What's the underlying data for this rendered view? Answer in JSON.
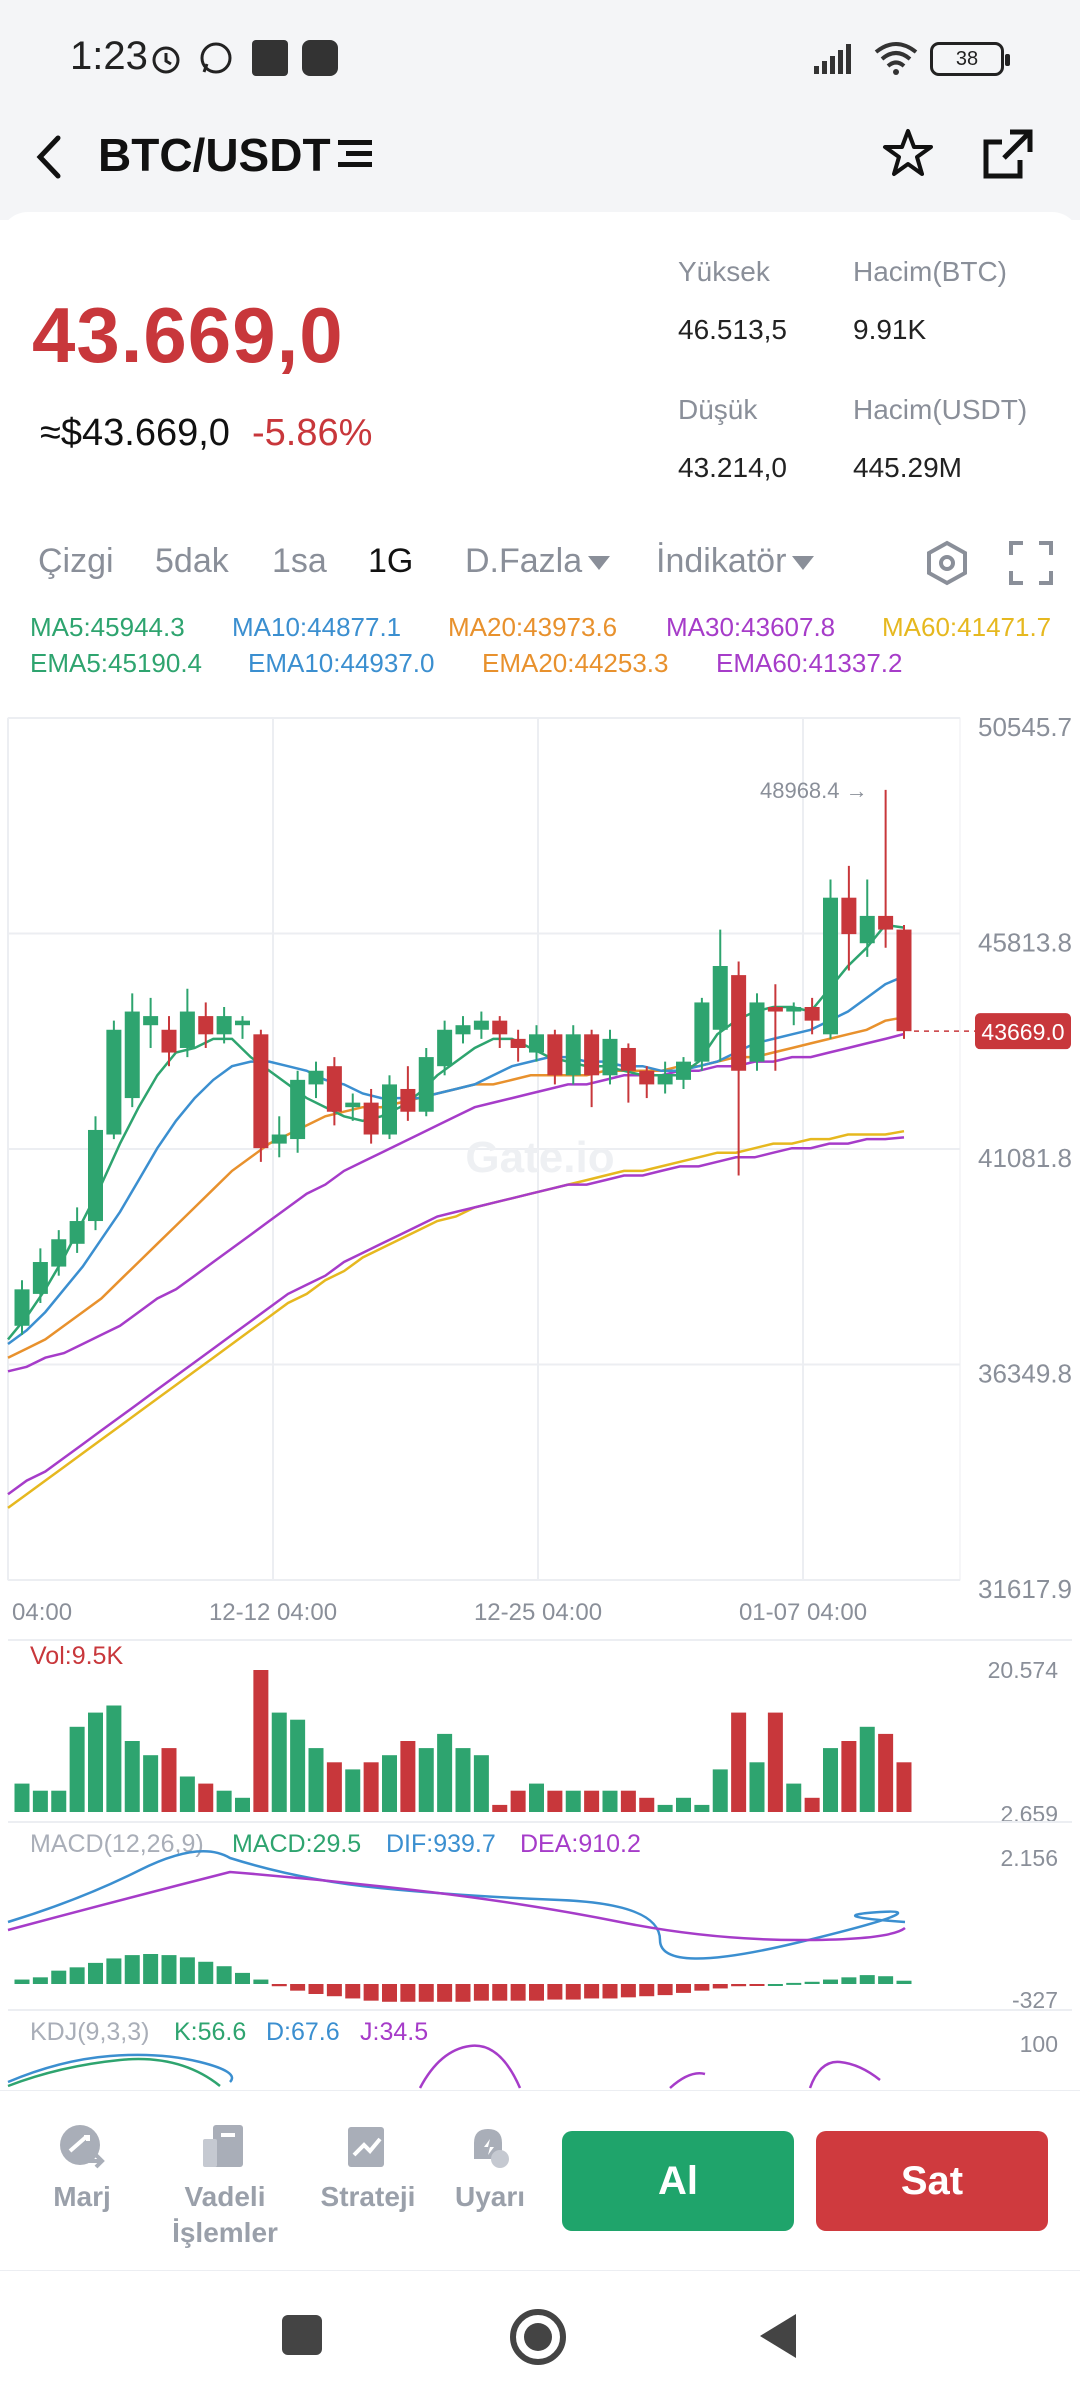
{
  "status": {
    "time": "1:23",
    "battery": "38",
    "icons": [
      "alarm-icon",
      "whatsapp-icon",
      "app-icon",
      "app-icon",
      "signal-icon",
      "wifi-icon",
      "battery-icon"
    ]
  },
  "header": {
    "title": "BTC/USDT",
    "icons": [
      "back-arrow-icon",
      "menu-lines-icon",
      "star-icon",
      "share-icon"
    ]
  },
  "summary": {
    "price": "43.669,0",
    "approx_usd": "≈$43.669,0",
    "change": "-5.86%",
    "high_label": "Yüksek",
    "high_value": "46.513,5",
    "vol_btc_label": "Hacim(BTC)",
    "vol_btc_value": "9.91K",
    "low_label": "Düşük",
    "low_value": "43.214,0",
    "vol_usdt_label": "Hacim(USDT)",
    "vol_usdt_value": "445.29M"
  },
  "tabs": {
    "line": "Çizgi",
    "m5": "5dak",
    "h1": "1sa",
    "d1": "1G",
    "more": "D.Fazla",
    "indicator": "İndikatör"
  },
  "legend": {
    "ma5": "MA5:45944.3",
    "ma10": "MA10:44877.1",
    "ma20": "MA20:43973.6",
    "ma30": "MA30:43607.8",
    "ma60": "MA60:41471.7",
    "ema5": "EMA5:45190.4",
    "ema10": "EMA10:44937.0",
    "ema20": "EMA20:44253.3",
    "ema60": "EMA60:41337.2"
  },
  "colors": {
    "up": "#2ea46f",
    "down": "#c8373b",
    "ma5": "#2ea46f",
    "ma10": "#3b8fd0",
    "ma20": "#e8912d",
    "ma30": "#a63cc9",
    "ma60": "#e6b81f",
    "buy": "#1fa46b",
    "sell": "#cf3a3e"
  },
  "chart_data": {
    "type": "candlestick",
    "y_axis_labels": [
      "50545.7",
      "45813.8",
      "41081.8",
      "36349.8",
      "31617.9"
    ],
    "ylim": [
      31617.9,
      50545.7
    ],
    "x_axis_labels": [
      "04:00",
      "12-12 04:00",
      "12-25 04:00",
      "01-07 04:00"
    ],
    "high_marker": "48968.4",
    "last_price_tag": "43669.0",
    "watermark": "Gate.io",
    "candles": [
      {
        "o": 37200,
        "c": 38000,
        "h": 38200,
        "l": 37000
      },
      {
        "o": 37900,
        "c": 38600,
        "h": 38900,
        "l": 37700
      },
      {
        "o": 38500,
        "c": 39100,
        "h": 39300,
        "l": 38300
      },
      {
        "o": 39000,
        "c": 39500,
        "h": 39800,
        "l": 38800
      },
      {
        "o": 39500,
        "c": 41500,
        "h": 41800,
        "l": 39300
      },
      {
        "o": 41400,
        "c": 43700,
        "h": 43900,
        "l": 41300
      },
      {
        "o": 42200,
        "c": 44100,
        "h": 44500,
        "l": 42000
      },
      {
        "o": 43800,
        "c": 44000,
        "h": 44400,
        "l": 43300
      },
      {
        "o": 43700,
        "c": 43200,
        "h": 44000,
        "l": 42900
      },
      {
        "o": 43300,
        "c": 44100,
        "h": 44600,
        "l": 43100
      },
      {
        "o": 44000,
        "c": 43600,
        "h": 44300,
        "l": 43300
      },
      {
        "o": 43600,
        "c": 44000,
        "h": 44200,
        "l": 43400
      },
      {
        "o": 43800,
        "c": 43900,
        "h": 44000,
        "l": 43500
      },
      {
        "o": 43600,
        "c": 41100,
        "h": 43700,
        "l": 40800
      },
      {
        "o": 41200,
        "c": 41400,
        "h": 41800,
        "l": 40900
      },
      {
        "o": 41300,
        "c": 42600,
        "h": 42800,
        "l": 41000
      },
      {
        "o": 42500,
        "c": 42800,
        "h": 43000,
        "l": 42200
      },
      {
        "o": 42900,
        "c": 41900,
        "h": 43100,
        "l": 41600
      },
      {
        "o": 42000,
        "c": 42100,
        "h": 42300,
        "l": 41700
      },
      {
        "o": 42100,
        "c": 41400,
        "h": 42400,
        "l": 41200
      },
      {
        "o": 41400,
        "c": 42500,
        "h": 42700,
        "l": 41300
      },
      {
        "o": 42400,
        "c": 41900,
        "h": 42900,
        "l": 41700
      },
      {
        "o": 41900,
        "c": 43100,
        "h": 43300,
        "l": 41800
      },
      {
        "o": 42900,
        "c": 43700,
        "h": 43900,
        "l": 42700
      },
      {
        "o": 43600,
        "c": 43800,
        "h": 44000,
        "l": 43400
      },
      {
        "o": 43700,
        "c": 43900,
        "h": 44100,
        "l": 43500
      },
      {
        "o": 43900,
        "c": 43600,
        "h": 44000,
        "l": 43300
      },
      {
        "o": 43500,
        "c": 43300,
        "h": 43700,
        "l": 43000
      },
      {
        "o": 43200,
        "c": 43600,
        "h": 43800,
        "l": 43000
      },
      {
        "o": 43600,
        "c": 42700,
        "h": 43700,
        "l": 42500
      },
      {
        "o": 42700,
        "c": 43600,
        "h": 43800,
        "l": 42500
      },
      {
        "o": 43600,
        "c": 42700,
        "h": 43700,
        "l": 42000
      },
      {
        "o": 42700,
        "c": 43500,
        "h": 43700,
        "l": 42500
      },
      {
        "o": 43300,
        "c": 42800,
        "h": 43400,
        "l": 42100
      },
      {
        "o": 42800,
        "c": 42500,
        "h": 42900,
        "l": 42200
      },
      {
        "o": 42500,
        "c": 42700,
        "h": 43000,
        "l": 42300
      },
      {
        "o": 42600,
        "c": 43000,
        "h": 43100,
        "l": 42400
      },
      {
        "o": 43000,
        "c": 44300,
        "h": 44400,
        "l": 42800
      },
      {
        "o": 43700,
        "c": 45100,
        "h": 45900,
        "l": 43000
      },
      {
        "o": 44900,
        "c": 42800,
        "h": 45200,
        "l": 40500
      },
      {
        "o": 43000,
        "c": 44300,
        "h": 44500,
        "l": 42800
      },
      {
        "o": 44200,
        "c": 44100,
        "h": 44700,
        "l": 42800
      },
      {
        "o": 44100,
        "c": 44200,
        "h": 44300,
        "l": 43800
      },
      {
        "o": 44200,
        "c": 43900,
        "h": 44400,
        "l": 43600
      },
      {
        "o": 43600,
        "c": 46600,
        "h": 47000,
        "l": 43500
      },
      {
        "o": 46600,
        "c": 45800,
        "h": 47300,
        "l": 45000
      },
      {
        "o": 45600,
        "c": 46200,
        "h": 47000,
        "l": 45300
      },
      {
        "o": 46200,
        "c": 45900,
        "h": 48968.4,
        "l": 45500
      },
      {
        "o": 45900,
        "c": 43669,
        "h": 46000,
        "l": 43500
      }
    ],
    "ma_lines": {
      "ma5": [
        36900,
        37400,
        38000,
        38700,
        39500,
        40300,
        41200,
        42000,
        42700,
        43200,
        43300,
        43500,
        43500,
        43100,
        42800,
        42500,
        42200,
        42000,
        41800,
        41700,
        41800,
        42000,
        42300,
        42700,
        43000,
        43300,
        43500,
        43500,
        43300,
        43100,
        43000,
        42900,
        42900,
        42800,
        42700,
        42700,
        42700,
        43000,
        43600,
        43900,
        44100,
        44200,
        44200,
        44100,
        44600,
        45100,
        45500,
        46000,
        45944.3
      ],
      "ma10": [
        36800,
        37100,
        37500,
        38000,
        38500,
        39100,
        39700,
        40400,
        41100,
        41700,
        42200,
        42600,
        42900,
        43000,
        43000,
        42900,
        42800,
        42600,
        42500,
        42300,
        42200,
        42200,
        42200,
        42300,
        42400,
        42500,
        42700,
        42900,
        43000,
        43100,
        43100,
        43000,
        43000,
        42900,
        42900,
        42800,
        42800,
        42900,
        43000,
        43200,
        43400,
        43500,
        43600,
        43700,
        43900,
        44100,
        44400,
        44700,
        44877.1
      ],
      "ma20": [
        36500,
        36700,
        36900,
        37200,
        37500,
        37800,
        38200,
        38600,
        39000,
        39400,
        39800,
        40200,
        40600,
        40900,
        41200,
        41400,
        41600,
        41800,
        41900,
        42000,
        42000,
        42100,
        42200,
        42300,
        42400,
        42500,
        42500,
        42600,
        42700,
        42700,
        42700,
        42700,
        42800,
        42800,
        42800,
        42800,
        42900,
        42900,
        43000,
        43100,
        43100,
        43200,
        43300,
        43400,
        43500,
        43600,
        43700,
        43900,
        43973.6
      ],
      "ma30": [
        36200,
        36300,
        36500,
        36600,
        36800,
        37000,
        37200,
        37500,
        37800,
        38000,
        38300,
        38600,
        38900,
        39200,
        39500,
        39800,
        40100,
        40300,
        40600,
        40800,
        41000,
        41200,
        41400,
        41600,
        41800,
        42000,
        42100,
        42200,
        42300,
        42400,
        42500,
        42500,
        42600,
        42700,
        42700,
        42700,
        42800,
        42800,
        42900,
        42900,
        43000,
        43000,
        43100,
        43100,
        43200,
        43300,
        43400,
        43500,
        43607.8
      ],
      "ma60": [
        33200,
        33500,
        33800,
        34100,
        34400,
        34700,
        35000,
        35300,
        35600,
        35900,
        36200,
        36500,
        36800,
        37100,
        37400,
        37700,
        37900,
        38200,
        38400,
        38700,
        38900,
        39100,
        39300,
        39500,
        39600,
        39800,
        39900,
        40000,
        40100,
        40200,
        40300,
        40400,
        40500,
        40600,
        40600,
        40700,
        40800,
        40900,
        41000,
        41000,
        41100,
        41200,
        41200,
        41300,
        41300,
        41400,
        41400,
        41400,
        41471.7
      ],
      "ema60": [
        33500,
        33800,
        34000,
        34300,
        34600,
        34900,
        35200,
        35500,
        35800,
        36100,
        36400,
        36700,
        37000,
        37300,
        37600,
        37900,
        38100,
        38300,
        38600,
        38800,
        39000,
        39200,
        39400,
        39600,
        39700,
        39800,
        39900,
        40000,
        40100,
        40200,
        40300,
        40300,
        40400,
        40500,
        40500,
        40600,
        40700,
        40700,
        40800,
        40900,
        40900,
        41000,
        41100,
        41100,
        41200,
        41200,
        41300,
        41300,
        41337.2
      ]
    },
    "volume": {
      "label": "Vol:9.5K",
      "ylim_labels": [
        "20.574",
        "2.659"
      ],
      "values": [
        4,
        3,
        3,
        12,
        14,
        15,
        10,
        8,
        9,
        5,
        4,
        3,
        2,
        20,
        14,
        13,
        9,
        7,
        6,
        7,
        8,
        10,
        9,
        11,
        9,
        8,
        1,
        3,
        4,
        3,
        3,
        3,
        3,
        3,
        2,
        1,
        2,
        1,
        6,
        14,
        7,
        14,
        4,
        2,
        9,
        10,
        12,
        11,
        7
      ]
    },
    "macd": {
      "label": "MACD(12,26,9)",
      "macd": "MACD:29.5",
      "dif": "DIF:939.7",
      "dea": "DEA:910.2",
      "ylim_labels": [
        "2.156",
        "-327"
      ],
      "hist": [
        40,
        60,
        120,
        150,
        190,
        230,
        260,
        270,
        260,
        240,
        200,
        160,
        100,
        40,
        -20,
        -60,
        -90,
        -110,
        -130,
        -150,
        -160,
        -160,
        -160,
        -160,
        -160,
        -150,
        -150,
        -150,
        -150,
        -140,
        -140,
        -130,
        -130,
        -120,
        -110,
        -100,
        -80,
        -60,
        -40,
        -20,
        -10,
        0,
        10,
        20,
        40,
        60,
        80,
        70,
        29.5
      ]
    },
    "kdj": {
      "label": "KDJ(9,3,3)",
      "k": "K:56.6",
      "d": "D:67.6",
      "j": "J:34.5",
      "ylim_label": "100"
    }
  },
  "actions": {
    "margin": "Marj",
    "futures_1": "Vadeli",
    "futures_2": "İşlemler",
    "strategy": "Strateji",
    "alert": "Uyarı",
    "buy": "Al",
    "sell": "Sat"
  }
}
